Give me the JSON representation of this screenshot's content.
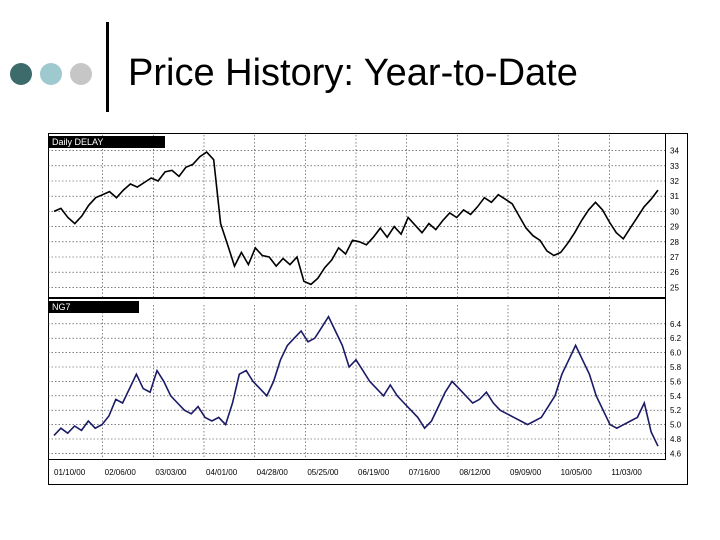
{
  "slide": {
    "title": "Price History: Year-to-Date"
  },
  "colors": {
    "upper_series": "#000000",
    "lower_series": "#1a1a66",
    "grid": "#333333",
    "dot1": "#3d6b6b",
    "dot2": "#9ec9cf",
    "dot3": "#c6c6c6"
  },
  "chart_data": [
    {
      "type": "line",
      "title": "Daily DELAY",
      "legend_placement": "top-left",
      "grid": true,
      "ylim": [
        24.5,
        34.5
      ],
      "yticks": [
        "34",
        "33",
        "32",
        "31",
        "30",
        "29",
        "28",
        "27",
        "26",
        "25"
      ],
      "ytick_values": [
        34,
        33,
        32,
        31,
        30,
        29,
        28,
        27,
        26,
        25
      ],
      "series": [
        {
          "name": "Daily DELAY",
          "values": [
            30.0,
            30.2,
            29.6,
            29.2,
            29.7,
            30.4,
            30.9,
            31.1,
            31.3,
            30.9,
            31.4,
            31.8,
            31.6,
            31.9,
            32.2,
            32.0,
            32.6,
            32.7,
            32.3,
            32.9,
            33.1,
            33.6,
            33.9,
            33.4,
            29.2,
            27.8,
            26.4,
            27.3,
            26.5,
            27.6,
            27.1,
            27.0,
            26.4,
            26.9,
            26.5,
            27.0,
            25.4,
            25.2,
            25.6,
            26.3,
            26.8,
            27.6,
            27.2,
            28.1,
            28.0,
            27.8,
            28.3,
            28.9,
            28.3,
            29.0,
            28.5,
            29.6,
            29.1,
            28.6,
            29.2,
            28.8,
            29.4,
            29.9,
            29.6,
            30.1,
            29.8,
            30.3,
            30.9,
            30.6,
            31.1,
            30.8,
            30.5,
            29.7,
            28.9,
            28.4,
            28.1,
            27.4,
            27.1,
            27.3,
            27.9,
            28.6,
            29.4,
            30.1,
            30.6,
            30.1,
            29.3,
            28.6,
            28.2,
            28.9,
            29.6,
            30.3,
            30.8,
            31.4
          ]
        }
      ]
    },
    {
      "type": "line",
      "title": "NG7",
      "legend_placement": "top-left",
      "grid": true,
      "ylim": [
        4.55,
        6.55
      ],
      "yticks": [
        "6.4",
        "6.2",
        "6.0",
        "5.8",
        "5.6",
        "5.4",
        "5.2",
        "5.0",
        "4.8",
        "4.6"
      ],
      "ytick_values": [
        6.4,
        6.2,
        6.0,
        5.8,
        5.6,
        5.4,
        5.2,
        5.0,
        4.8,
        4.6
      ],
      "xticks": [
        "01/10/00",
        "02/06/00",
        "03/03/00",
        "04/01/00",
        "04/28/00",
        "05/25/00",
        "06/19/00",
        "07/16/00",
        "08/12/00",
        "09/09/00",
        "10/05/00",
        "11/03/00"
      ],
      "series": [
        {
          "name": "NG7",
          "values": [
            4.85,
            4.95,
            4.88,
            4.98,
            4.92,
            5.05,
            4.95,
            5.0,
            5.12,
            5.35,
            5.3,
            5.5,
            5.7,
            5.5,
            5.45,
            5.75,
            5.6,
            5.4,
            5.3,
            5.2,
            5.15,
            5.25,
            5.1,
            5.05,
            5.1,
            5.0,
            5.3,
            5.7,
            5.75,
            5.6,
            5.5,
            5.4,
            5.6,
            5.9,
            6.1,
            6.2,
            6.3,
            6.15,
            6.2,
            6.35,
            6.5,
            6.3,
            6.1,
            5.8,
            5.9,
            5.75,
            5.6,
            5.5,
            5.4,
            5.55,
            5.4,
            5.3,
            5.2,
            5.1,
            4.95,
            5.05,
            5.25,
            5.45,
            5.6,
            5.5,
            5.4,
            5.3,
            5.35,
            5.45,
            5.3,
            5.2,
            5.15,
            5.1,
            5.05,
            5.0,
            5.05,
            5.1,
            5.25,
            5.4,
            5.7,
            5.9,
            6.1,
            5.9,
            5.7,
            5.4,
            5.2,
            5.0,
            4.95,
            5.0,
            5.05,
            5.1,
            5.3,
            4.9,
            4.7
          ]
        }
      ]
    }
  ]
}
